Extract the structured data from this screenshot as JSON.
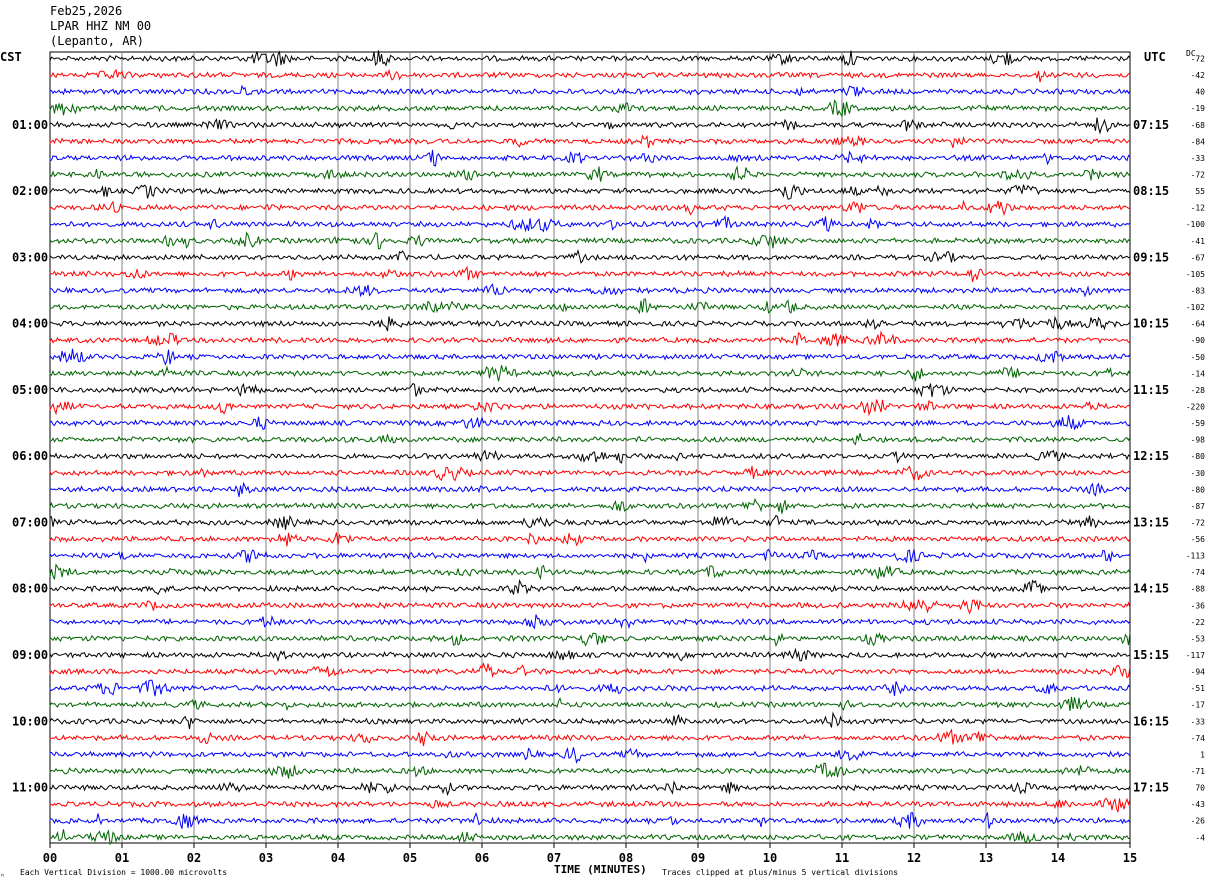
{
  "header": {
    "date": "Feb25,2026",
    "station": "LPAR HHZ NM 00",
    "location": "(Lepanto, AR)"
  },
  "labels": {
    "left_tz": "CST",
    "right_tz": "UTC",
    "dc": "DC"
  },
  "footer": {
    "left_note": "Each Vertical Division = 1000.00 microvolts",
    "xlabel": "TIME (MINUTES)",
    "right_note": "Traces clipped at plus/minus 5 vertical divisions",
    "corner_mark": "ⁿ"
  },
  "chart_data": {
    "type": "line",
    "xlabel": "TIME (MINUTES)",
    "xlim": [
      0,
      15
    ],
    "x_ticks": [
      "00",
      "01",
      "02",
      "03",
      "04",
      "05",
      "06",
      "07",
      "08",
      "09",
      "10",
      "11",
      "12",
      "13",
      "14",
      "15"
    ],
    "num_traces": 48,
    "trace_colors": [
      "#000000",
      "#ff0000",
      "#0000ff",
      "#006400"
    ],
    "grid": "vertical lines at each minute",
    "left_hour_labels": [
      {
        "trace": 4,
        "label": "01:00"
      },
      {
        "trace": 8,
        "label": "02:00"
      },
      {
        "trace": 12,
        "label": "03:00"
      },
      {
        "trace": 16,
        "label": "04:00"
      },
      {
        "trace": 20,
        "label": "05:00"
      },
      {
        "trace": 24,
        "label": "06:00"
      },
      {
        "trace": 28,
        "label": "07:00"
      },
      {
        "trace": 32,
        "label": "08:00"
      },
      {
        "trace": 36,
        "label": "09:00"
      },
      {
        "trace": 40,
        "label": "10:00"
      },
      {
        "trace": 44,
        "label": "11:00"
      }
    ],
    "right_hour_labels": [
      {
        "trace": 4,
        "label": "07:15"
      },
      {
        "trace": 8,
        "label": "08:15"
      },
      {
        "trace": 12,
        "label": "09:15"
      },
      {
        "trace": 16,
        "label": "10:15"
      },
      {
        "trace": 20,
        "label": "11:15"
      },
      {
        "trace": 24,
        "label": "12:15"
      },
      {
        "trace": 28,
        "label": "13:15"
      },
      {
        "trace": 32,
        "label": "14:15"
      },
      {
        "trace": 36,
        "label": "15:15"
      },
      {
        "trace": 40,
        "label": "16:15"
      },
      {
        "trace": 44,
        "label": "17:15"
      }
    ],
    "dc_offsets": [
      "-72",
      "-42",
      "40",
      "-19",
      "-68",
      "-84",
      "-33",
      "-72",
      "55",
      "-12",
      "-100",
      "-41",
      "-67",
      "-105",
      "-83",
      "-102",
      "-64",
      "-90",
      "-50",
      "-14",
      "-28",
      "-220",
      "-59",
      "-98",
      "-80",
      "-30",
      "-80",
      "-87",
      "-72",
      "-56",
      "-113",
      "-74",
      "-88",
      "-36",
      "-22",
      "-53",
      "-117",
      "-94",
      "-51",
      "-17",
      "-33",
      "-74",
      "1",
      "-71",
      "70",
      "-43",
      "-26",
      "-4"
    ]
  }
}
